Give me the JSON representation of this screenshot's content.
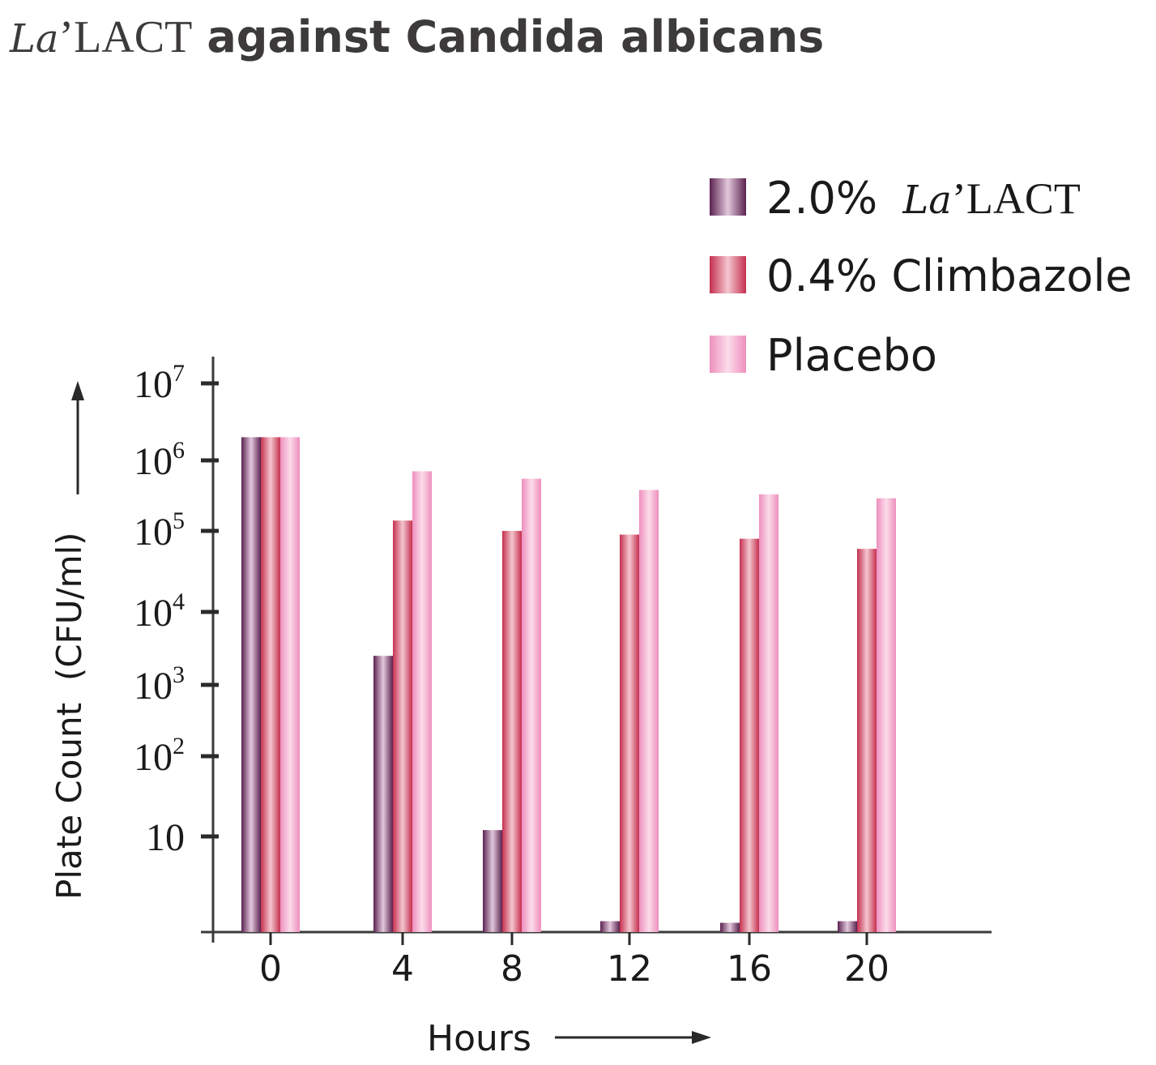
{
  "title": {
    "brand_script": "La",
    "brand_name": "’LACT",
    "rest": "against Candida albicans"
  },
  "chart_data": {
    "type": "bar",
    "xlabel": "Hours",
    "ylabel": "Plate Count  (CFU/ml)",
    "yscale": "log",
    "ylim": [
      1,
      10000000
    ],
    "legend_position": "top-right",
    "grid": false,
    "categories": [
      "0",
      "4",
      "8",
      "12",
      "16",
      "20"
    ],
    "y_ticks": [
      {
        "value": 10,
        "base": "10",
        "exp": ""
      },
      {
        "value": 100,
        "base": "10",
        "exp": "2"
      },
      {
        "value": 1000,
        "base": "10",
        "exp": "3"
      },
      {
        "value": 10000,
        "base": "10",
        "exp": "4"
      },
      {
        "value": 100000,
        "base": "10",
        "exp": "5"
      },
      {
        "value": 1000000,
        "base": "10",
        "exp": "6"
      },
      {
        "value": 10000000,
        "base": "10",
        "exp": "7"
      }
    ],
    "series": [
      {
        "name": "2.0% La’LACT",
        "legend_script": "La",
        "legend_prefix": "2.0% ",
        "legend_suffix": "’LACT",
        "color_dark": "#5a2250",
        "color_light": "#e3c8dc",
        "values": [
          2000000,
          2500,
          12,
          1.3,
          1.25,
          1.3
        ]
      },
      {
        "name": "0.4% Climbazole",
        "legend_prefix": "0.4% Climbazole",
        "color_dark": "#c5304f",
        "color_light": "#f4c6cf",
        "values": [
          2000000,
          140000,
          100000,
          90000,
          80000,
          60000
        ]
      },
      {
        "name": "Placebo",
        "legend_prefix": "Placebo",
        "color_dark": "#ee8fbd",
        "color_light": "#fbdcea",
        "values": [
          2000000,
          700000,
          550000,
          380000,
          330000,
          290000
        ]
      }
    ]
  }
}
